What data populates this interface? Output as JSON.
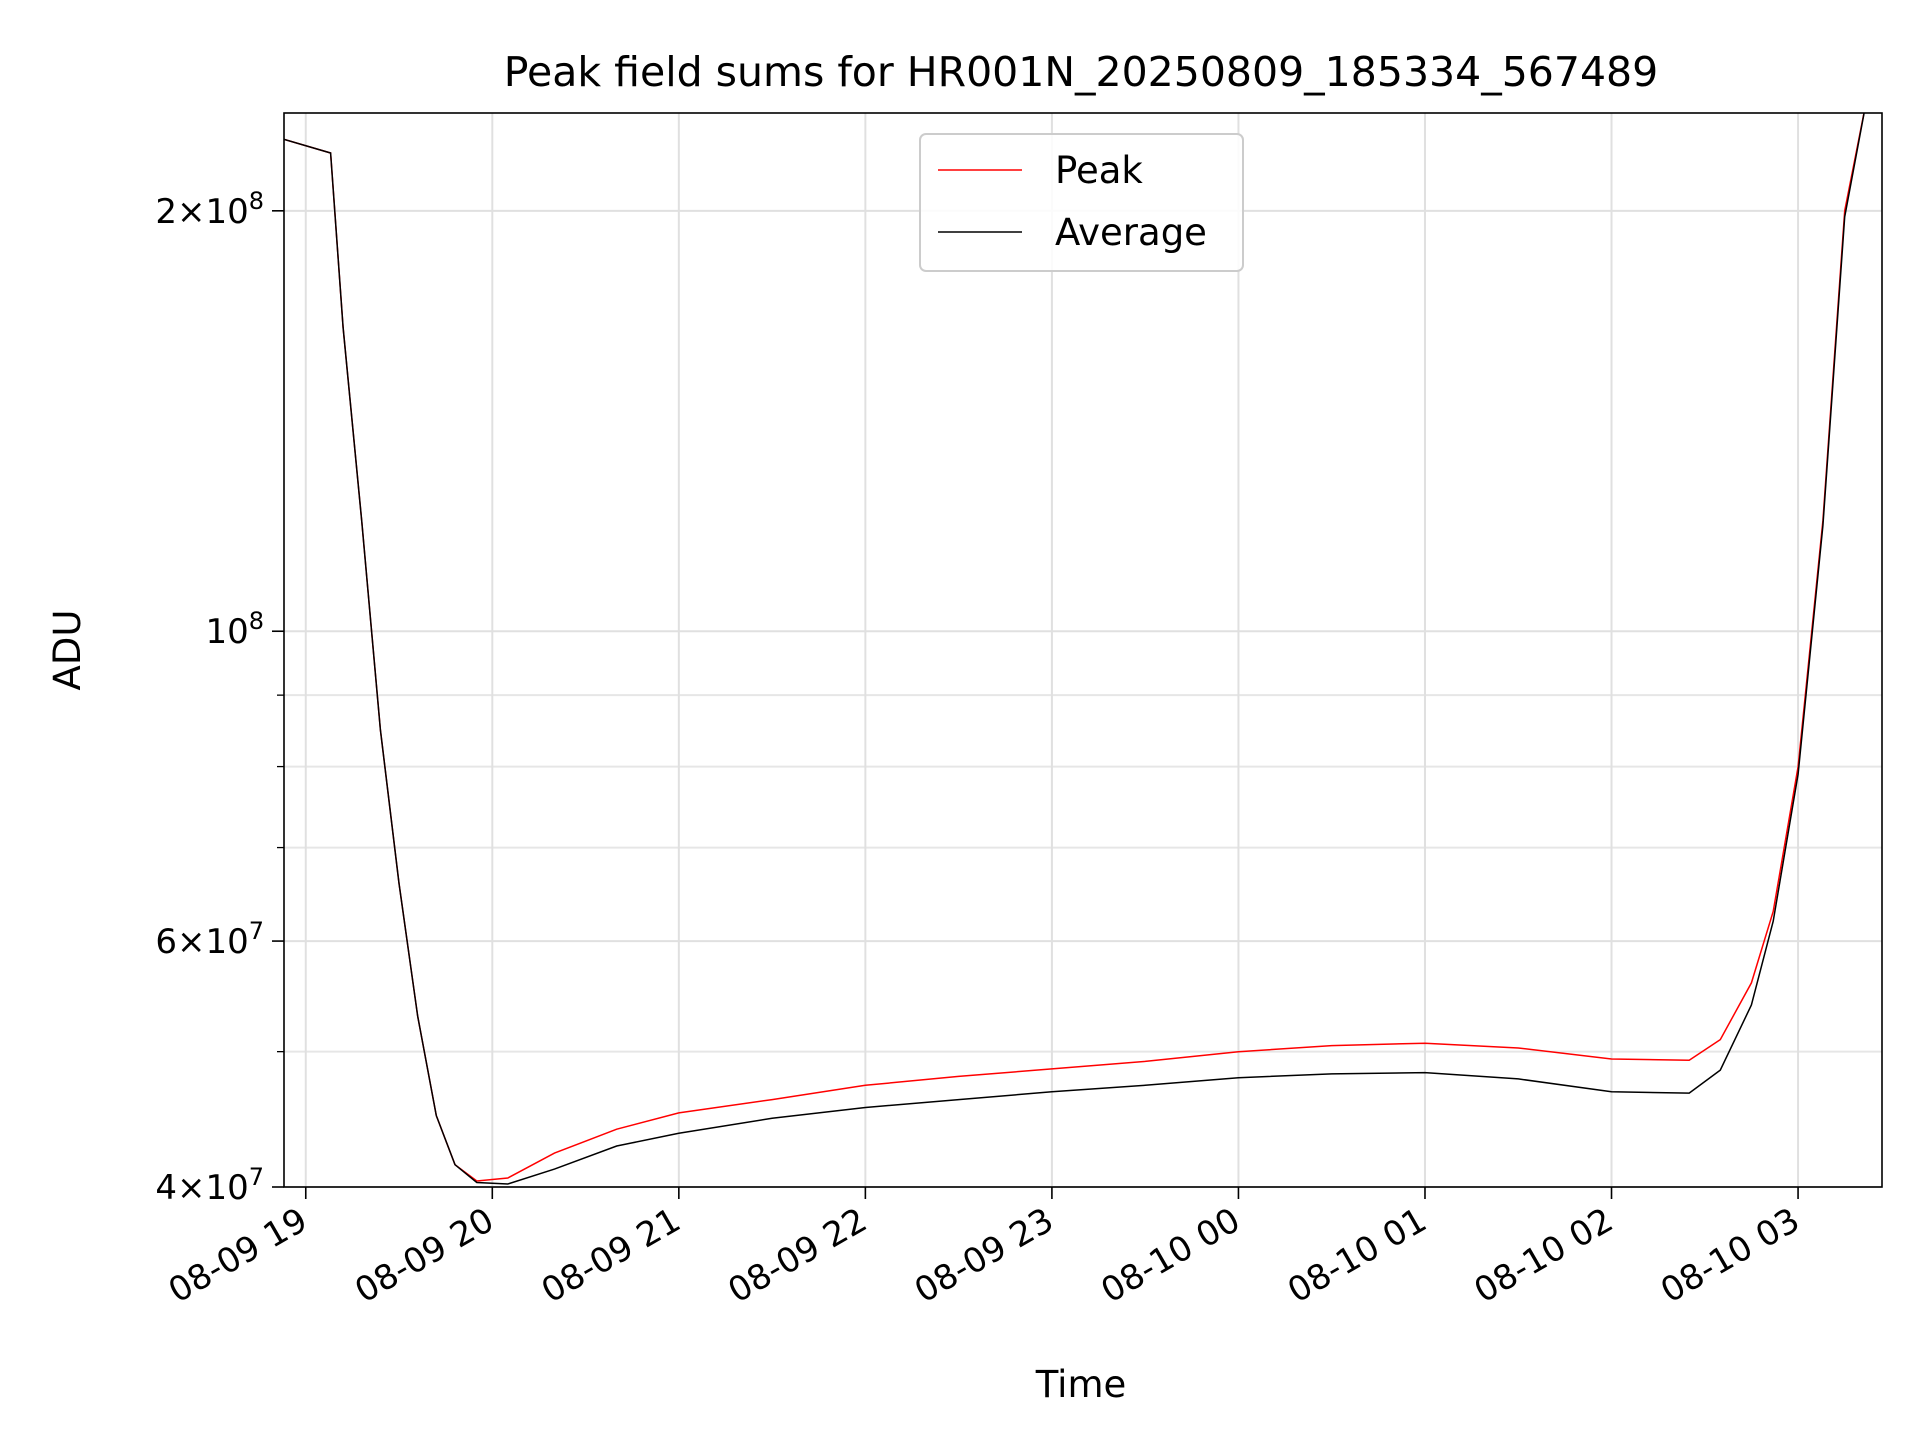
{
  "chart_data": {
    "type": "line",
    "title": "Peak field sums for HR001N_20250809_185334_567489",
    "xlabel": "Time",
    "ylabel": "ADU",
    "y_scale": "log",
    "ylim": [
      40000000,
      235000000
    ],
    "xlim": [
      "2025-08-09 18:53",
      "2025-08-10 03:27"
    ],
    "grid": true,
    "legend_position": "top-center",
    "x_ticks": [
      {
        "t": "2025-08-09 19:00",
        "label": "08-09 19"
      },
      {
        "t": "2025-08-09 20:00",
        "label": "08-09 20"
      },
      {
        "t": "2025-08-09 21:00",
        "label": "08-09 21"
      },
      {
        "t": "2025-08-09 22:00",
        "label": "08-09 22"
      },
      {
        "t": "2025-08-09 23:00",
        "label": "08-09 23"
      },
      {
        "t": "2025-08-10 00:00",
        "label": "08-10 00"
      },
      {
        "t": "2025-08-10 01:00",
        "label": "08-10 01"
      },
      {
        "t": "2025-08-10 02:00",
        "label": "08-10 02"
      },
      {
        "t": "2025-08-10 03:00",
        "label": "08-10 03"
      }
    ],
    "y_major_ticks": [
      {
        "v": 40000000,
        "mant": "4",
        "exp": "7"
      },
      {
        "v": 60000000,
        "mant": "6",
        "exp": "7"
      },
      {
        "v": 100000000,
        "mant": "",
        "exp": "8"
      },
      {
        "v": 200000000,
        "mant": "2",
        "exp": "8"
      }
    ],
    "y_minor_ticks": [
      50000000,
      70000000,
      80000000,
      90000000,
      300000000
    ],
    "series": [
      {
        "name": "Peak",
        "color": "#ff0000",
        "x": [
          "2025-08-09 18:53",
          "2025-08-09 19:08",
          "2025-08-09 19:12",
          "2025-08-09 19:18",
          "2025-08-09 19:24",
          "2025-08-09 19:30",
          "2025-08-09 19:36",
          "2025-08-09 19:42",
          "2025-08-09 19:48",
          "2025-08-09 19:55",
          "2025-08-09 20:05",
          "2025-08-09 20:20",
          "2025-08-09 20:40",
          "2025-08-09 21:00",
          "2025-08-09 21:30",
          "2025-08-09 22:00",
          "2025-08-09 22:30",
          "2025-08-09 23:00",
          "2025-08-09 23:30",
          "2025-08-10 00:00",
          "2025-08-10 00:30",
          "2025-08-10 01:00",
          "2025-08-10 01:30",
          "2025-08-10 02:00",
          "2025-08-10 02:25",
          "2025-08-10 02:35",
          "2025-08-10 02:45",
          "2025-08-10 02:52",
          "2025-08-10 03:00",
          "2025-08-10 03:08",
          "2025-08-10 03:15",
          "2025-08-10 03:22"
        ],
        "values": [
          225000000,
          220000000,
          165000000,
          120000000,
          85000000,
          66000000,
          53000000,
          45000000,
          41500000,
          40400000,
          40600000,
          42300000,
          44000000,
          45200000,
          46200000,
          47300000,
          48000000,
          48600000,
          49200000,
          50000000,
          50500000,
          50700000,
          50300000,
          49400000,
          49300000,
          51000000,
          56000000,
          63000000,
          80000000,
          120000000,
          200000000,
          240000000
        ]
      },
      {
        "name": "Average",
        "color": "#000000",
        "x": [
          "2025-08-09 18:53",
          "2025-08-09 19:08",
          "2025-08-09 19:12",
          "2025-08-09 19:18",
          "2025-08-09 19:24",
          "2025-08-09 19:30",
          "2025-08-09 19:36",
          "2025-08-09 19:42",
          "2025-08-09 19:48",
          "2025-08-09 19:55",
          "2025-08-09 20:05",
          "2025-08-09 20:20",
          "2025-08-09 20:40",
          "2025-08-09 21:00",
          "2025-08-09 21:30",
          "2025-08-09 22:00",
          "2025-08-09 22:30",
          "2025-08-09 23:00",
          "2025-08-09 23:30",
          "2025-08-10 00:00",
          "2025-08-10 00:30",
          "2025-08-10 01:00",
          "2025-08-10 01:30",
          "2025-08-10 02:00",
          "2025-08-10 02:25",
          "2025-08-10 02:35",
          "2025-08-10 02:45",
          "2025-08-10 02:52",
          "2025-08-10 03:00",
          "2025-08-10 03:08",
          "2025-08-10 03:15",
          "2025-08-10 03:22"
        ],
        "values": [
          225000000,
          220000000,
          165000000,
          120000000,
          85000000,
          66000000,
          53000000,
          45000000,
          41500000,
          40300000,
          40200000,
          41200000,
          42800000,
          43700000,
          44800000,
          45600000,
          46200000,
          46800000,
          47300000,
          47900000,
          48200000,
          48300000,
          47800000,
          46800000,
          46700000,
          48500000,
          54000000,
          62000000,
          79000000,
          119000000,
          198000000,
          240000000
        ]
      }
    ]
  }
}
